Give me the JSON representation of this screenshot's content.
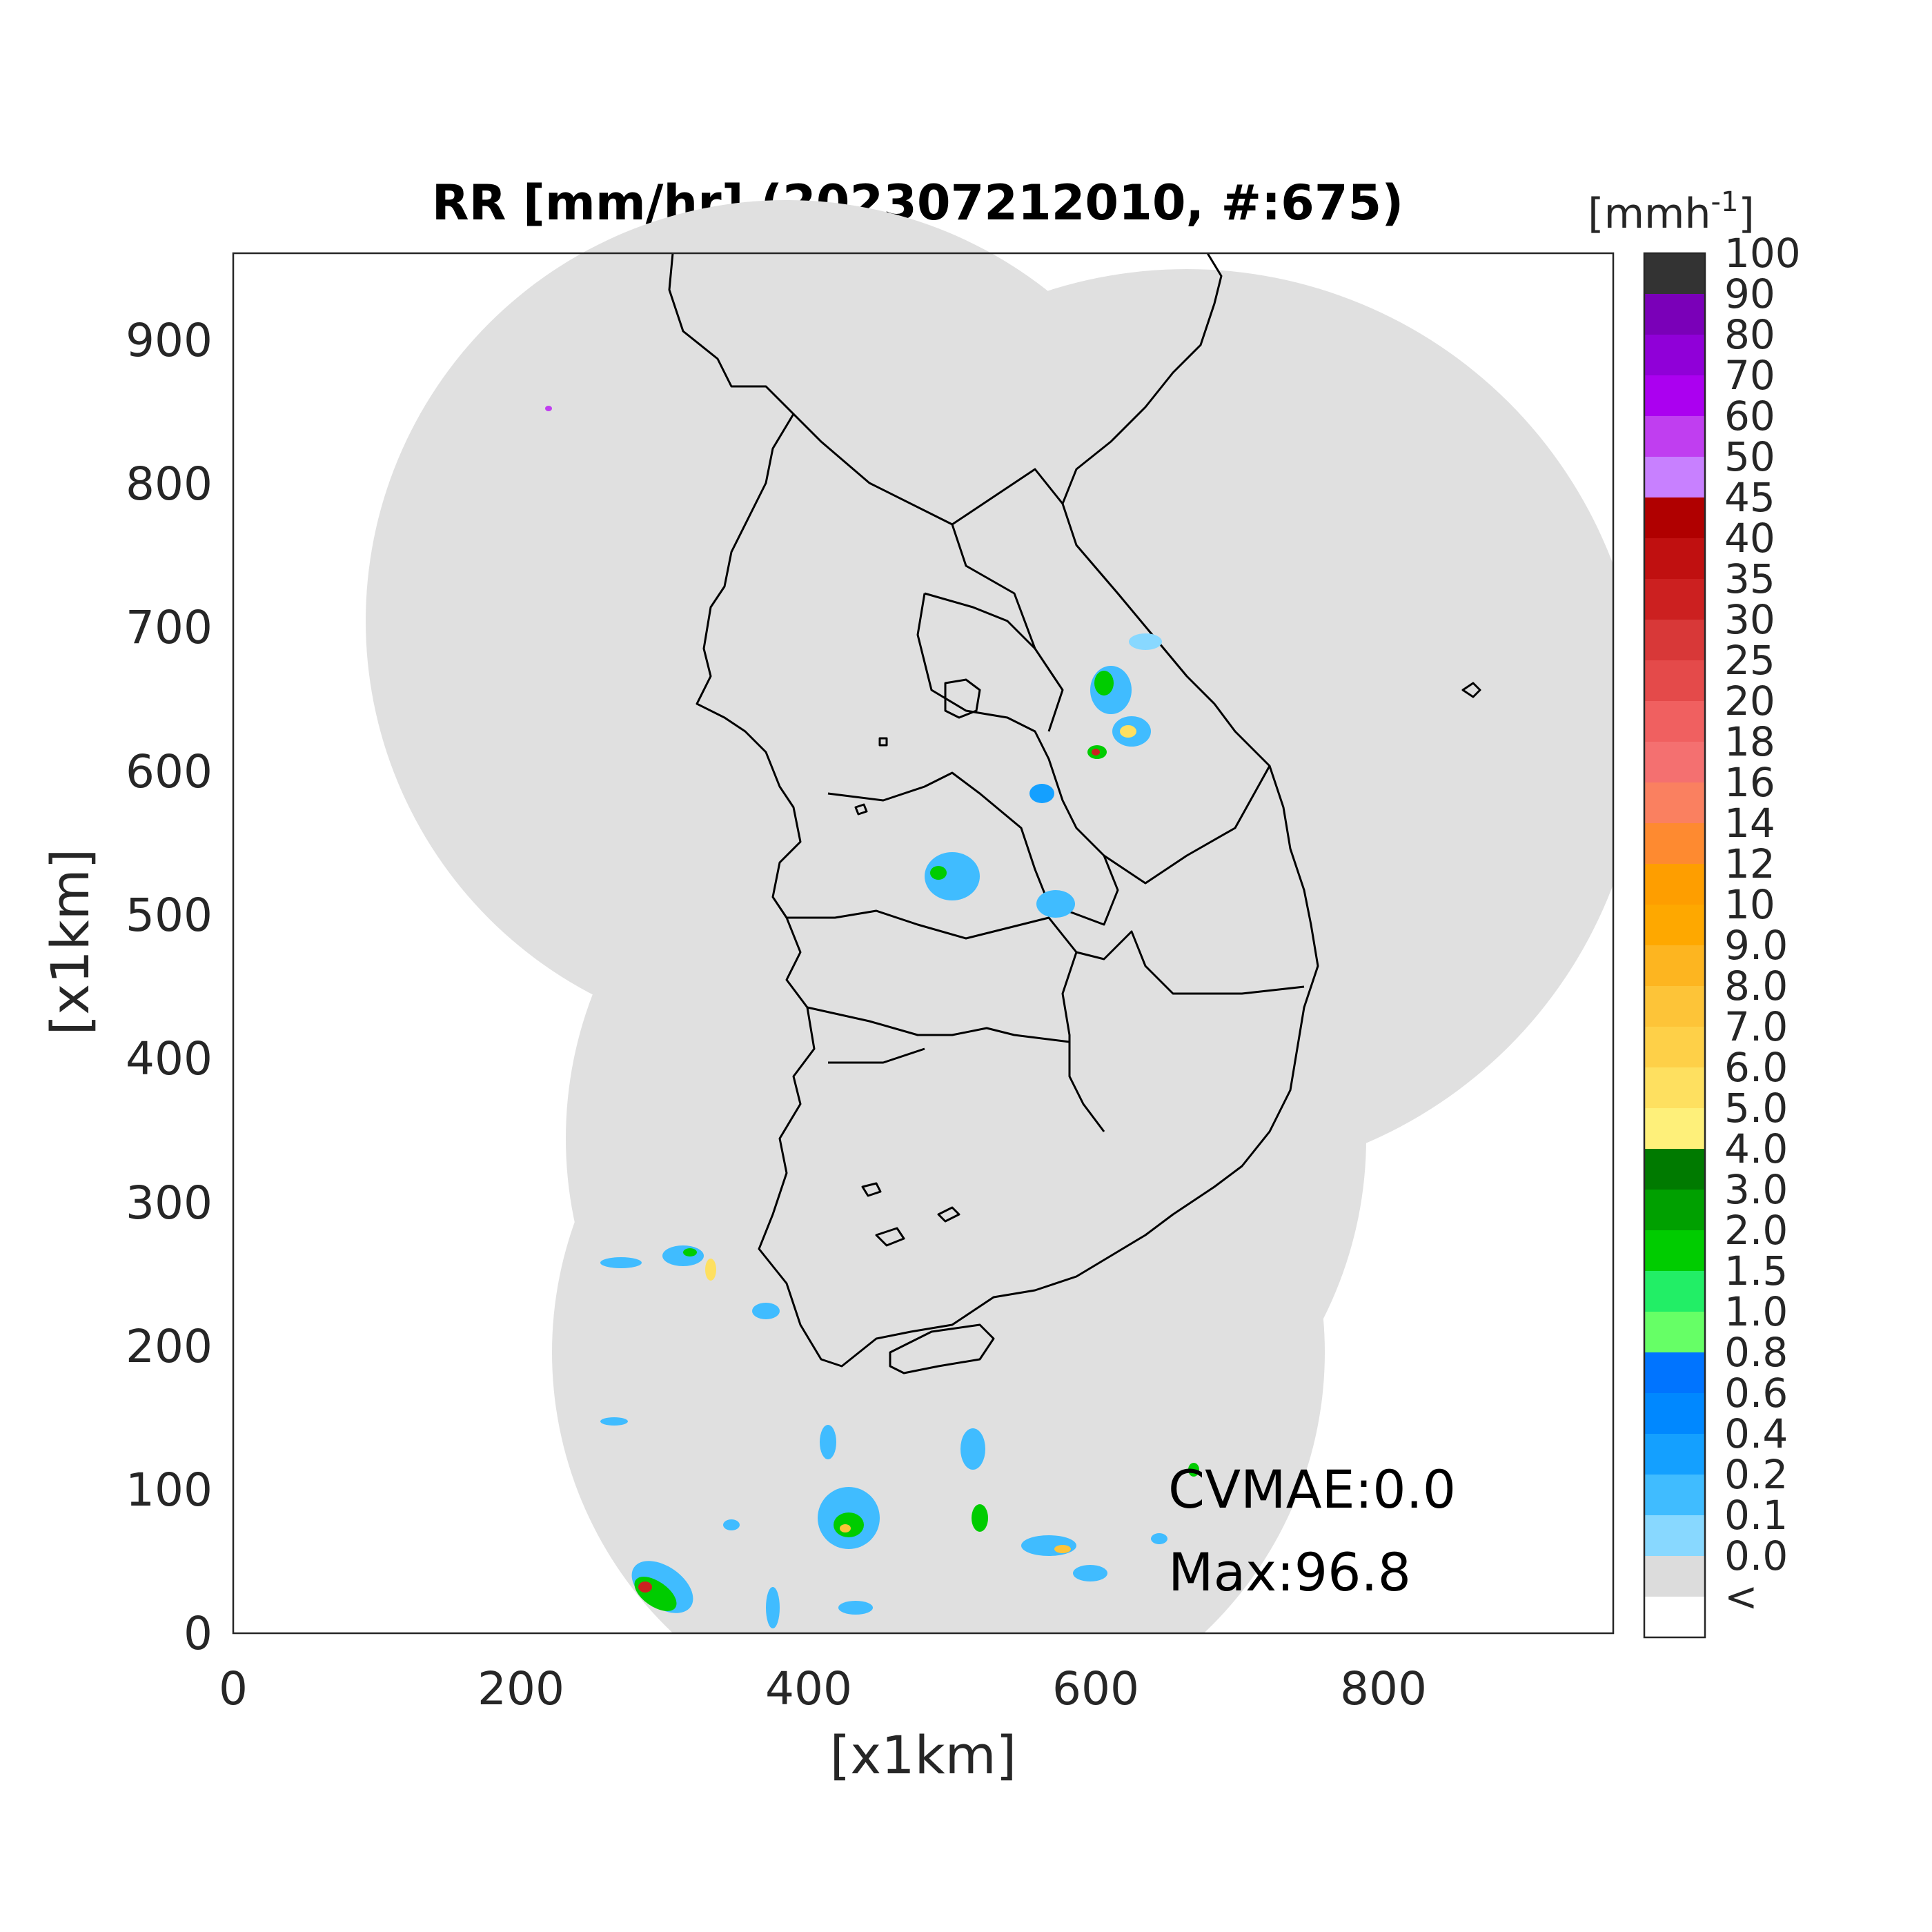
{
  "title": "RR [mm/hr] (202307212010, #:675)",
  "colorbar_unit": "[mmh",
  "colorbar_unit_exp": "-1",
  "colorbar_unit_close": "]",
  "xlabel": "[x1km]",
  "ylabel": "[x1km]",
  "x_ticks": [
    "0",
    "200",
    "400",
    "600",
    "800"
  ],
  "y_ticks": [
    "0",
    "100",
    "200",
    "300",
    "400",
    "500",
    "600",
    "700",
    "800",
    "900"
  ],
  "annotation_cvmae": "CVMAE:0.0",
  "annotation_max": "Max:96.8",
  "colorbar": {
    "labels": [
      "100",
      "90",
      "80",
      "70",
      "60",
      "50",
      "45",
      "40",
      "35",
      "30",
      "25",
      "20",
      "18",
      "16",
      "14",
      "12",
      "10",
      "9.0",
      "8.0",
      "7.0",
      "6.0",
      "5.0",
      "4.0",
      "3.0",
      "2.0",
      "1.5",
      "1.0",
      "0.8",
      "0.6",
      "0.4",
      "0.2",
      "0.1",
      "0.0",
      "<"
    ],
    "colors": [
      "#333333",
      "#7a00b8",
      "#9000d8",
      "#ab00f0",
      "#c03ef0",
      "#c880ff",
      "#b00000",
      "#c01010",
      "#cc2020",
      "#d83838",
      "#e44a4a",
      "#f06060",
      "#f47070",
      "#fa8060",
      "#fe8a30",
      "#fe9e00",
      "#fea800",
      "#fdb520",
      "#fdc438",
      "#fed048",
      "#fee060",
      "#fef07a",
      "#007a00",
      "#00a000",
      "#00cc00",
      "#22ee66",
      "#66ff66",
      "#0074ff",
      "#0088ff",
      "#14a0ff",
      "#40bcff",
      "#88d8ff",
      "#dcdcdc",
      "#ffffff"
    ]
  },
  "chart_data": {
    "type": "heatmap",
    "title": "RR [mm/hr] (202307212010, #:675)",
    "xlabel": "[x1km]",
    "ylabel": "[x1km]",
    "xlim": [
      0,
      960
    ],
    "ylim": [
      0,
      960
    ],
    "max_value": 96.8,
    "cvmae": 0.0
  }
}
